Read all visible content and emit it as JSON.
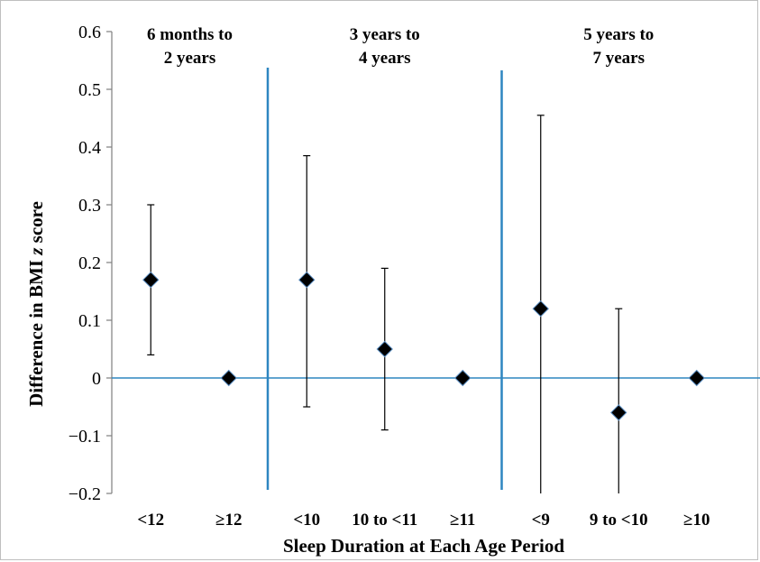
{
  "chart_data": {
    "type": "scatter",
    "title": "",
    "xlabel": "Sleep Duration at Each Age Period",
    "ylabel_prefix": "Difference in BMI ",
    "ylabel_italic": "z",
    "ylabel_suffix": " score",
    "ylim": [
      -0.2,
      0.6
    ],
    "yticks": [
      -0.2,
      -0.1,
      0,
      0.1,
      0.2,
      0.3,
      0.4,
      0.5,
      0.6
    ],
    "ytick_labels": [
      "−0.2",
      "−0.1",
      "0",
      "0.1",
      "0.2",
      "0.3",
      "0.4",
      "0.5",
      "0.6"
    ],
    "grid": false,
    "legend": "none",
    "colors": {
      "separator": "#2e86c1",
      "zero_line": "#2e86c1",
      "marker": "#000000",
      "error_bar": "#000000",
      "axis": "#7f7f7f"
    },
    "categories": [
      "<12",
      "≥12",
      "<10",
      "10 to <11",
      "≥11",
      "<9",
      "9 to <10",
      "≥10"
    ],
    "values": [
      0.17,
      0.0,
      0.17,
      0.05,
      0.0,
      0.12,
      -0.06,
      0.0
    ],
    "error_low": [
      0.04,
      null,
      -0.05,
      -0.09,
      null,
      -0.2,
      -0.2,
      null
    ],
    "error_high": [
      0.3,
      null,
      0.385,
      0.19,
      null,
      0.455,
      0.12,
      null
    ],
    "periods": [
      {
        "line1": "6 months to",
        "line2": "2 years",
        "categories": [
          0,
          1
        ]
      },
      {
        "line1": "3 years to",
        "line2": "4 years",
        "categories": [
          2,
          3,
          4
        ]
      },
      {
        "line1": "5 years to",
        "line2": "7 years",
        "categories": [
          5,
          6,
          7
        ]
      }
    ]
  }
}
